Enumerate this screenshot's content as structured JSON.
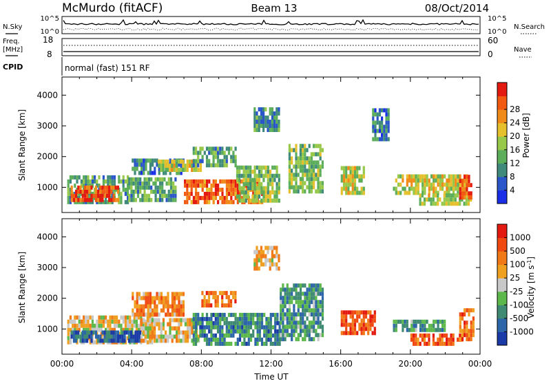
{
  "header": {
    "title": "McMurdo (fitACF)",
    "beam": "Beam 13",
    "date": "08/Oct/2014"
  },
  "noise_panel": {
    "left_label": "N.Sky",
    "right_label": "N.Search",
    "tick_top": "10^5",
    "tick_bottom": "10^0"
  },
  "freq_panel": {
    "left_label_1": "Freq.",
    "left_label_2": "[MHz]",
    "left_tick_top": "18",
    "left_tick_bottom": "8",
    "right_label": "Nave",
    "right_tick_top": "60",
    "right_tick_bottom": "0"
  },
  "cpid_panel": {
    "label": "CPID",
    "mode_text": "normal (fast) 151 RF"
  },
  "chart_data": [
    {
      "type": "heatmap",
      "name": "power",
      "ylabel": "Slant Range [km]",
      "x_ticks": [
        "00:00",
        "04:00",
        "08:00",
        "12:00",
        "16:00",
        "20:00",
        "00:00"
      ],
      "y_ticks": [
        1000,
        2000,
        3000,
        4000
      ],
      "ylim": [
        180,
        4590
      ],
      "colorbar": {
        "label": "Power [dB]",
        "tick_labels": [
          "4",
          "8",
          "12",
          "16",
          "20",
          "24",
          "28"
        ],
        "colors": [
          "#1a2ee8",
          "#2b56c9",
          "#3f8a7a",
          "#5cae5a",
          "#97c84a",
          "#e6c02c",
          "#f08a18",
          "#f25a12",
          "#e41a10"
        ]
      },
      "regions": [
        {
          "t0": 0.3,
          "t1": 3.8,
          "r0": 450,
          "r1": 1350,
          "level": 0.35
        },
        {
          "t0": 0.5,
          "t1": 3.2,
          "r0": 520,
          "r1": 950,
          "level": 0.85
        },
        {
          "t0": 3.8,
          "t1": 6.5,
          "r0": 520,
          "r1": 1200,
          "level": 0.35
        },
        {
          "t0": 4.0,
          "t1": 7.0,
          "r0": 1400,
          "r1": 1900,
          "level": 0.25
        },
        {
          "t0": 5.5,
          "t1": 8.0,
          "r0": 1500,
          "r1": 1800,
          "level": 0.55
        },
        {
          "t0": 7.0,
          "t1": 11.5,
          "r0": 450,
          "r1": 1250,
          "level": 0.8
        },
        {
          "t0": 7.5,
          "t1": 10.0,
          "r0": 1650,
          "r1": 2250,
          "level": 0.35
        },
        {
          "t0": 10.0,
          "t1": 12.5,
          "r0": 500,
          "r1": 1600,
          "level": 0.45
        },
        {
          "t0": 11.0,
          "t1": 12.5,
          "r0": 2800,
          "r1": 3600,
          "level": 0.3
        },
        {
          "t0": 13.0,
          "t1": 15.0,
          "r0": 800,
          "r1": 2400,
          "level": 0.45
        },
        {
          "t0": 16.0,
          "t1": 17.3,
          "r0": 750,
          "r1": 1600,
          "level": 0.55
        },
        {
          "t0": 17.8,
          "t1": 18.8,
          "r0": 2500,
          "r1": 3500,
          "level": 0.25
        },
        {
          "t0": 19.0,
          "t1": 23.2,
          "r0": 750,
          "r1": 1400,
          "level": 0.55
        },
        {
          "t0": 20.5,
          "t1": 23.5,
          "r0": 400,
          "r1": 750,
          "level": 0.5
        },
        {
          "t0": 22.8,
          "t1": 23.5,
          "r0": 600,
          "r1": 1300,
          "level": 0.9
        }
      ]
    },
    {
      "type": "heatmap",
      "name": "velocity",
      "ylabel": "Slant Range [km]",
      "xlabel": "Time UT",
      "x_ticks": [
        "00:00",
        "04:00",
        "08:00",
        "12:00",
        "16:00",
        "20:00",
        "00:00"
      ],
      "y_ticks": [
        1000,
        2000,
        3000,
        4000
      ],
      "ylim": [
        180,
        4590
      ],
      "colorbar": {
        "label": "Velocity [m s^-1]",
        "label_main": "Velocity [m s",
        "label_sup": "-1",
        "label_end": "]",
        "tick_labels": [
          "1000",
          "500",
          "100",
          "25",
          "-25",
          "-100",
          "-500",
          "-1000"
        ],
        "colors": [
          "#1a3aa8",
          "#2d66a8",
          "#3f8a72",
          "#5cb84a",
          "#c8c8c8",
          "#f0a020",
          "#f07a18",
          "#f04a12",
          "#e41a10"
        ]
      },
      "regions": [
        {
          "t0": 0.3,
          "t1": 5.2,
          "r0": 500,
          "r1": 1400,
          "level": 0.55
        },
        {
          "t0": 0.5,
          "t1": 4.5,
          "r0": 550,
          "r1": 900,
          "level": 0.15
        },
        {
          "t0": 4.5,
          "t1": 7.8,
          "r0": 550,
          "r1": 1300,
          "level": 0.55
        },
        {
          "t0": 4.0,
          "t1": 7.0,
          "r0": 1400,
          "r1": 2200,
          "level": 0.7
        },
        {
          "t0": 7.5,
          "t1": 12.5,
          "r0": 450,
          "r1": 1400,
          "level": 0.25
        },
        {
          "t0": 8.0,
          "t1": 10.0,
          "r0": 1700,
          "r1": 2200,
          "level": 0.75
        },
        {
          "t0": 11.0,
          "t1": 12.5,
          "r0": 2900,
          "r1": 3600,
          "level": 0.6
        },
        {
          "t0": 12.5,
          "t1": 15.0,
          "r0": 600,
          "r1": 2400,
          "level": 0.3
        },
        {
          "t0": 16.0,
          "t1": 18.0,
          "r0": 800,
          "r1": 1550,
          "level": 0.85
        },
        {
          "t0": 19.0,
          "t1": 22.0,
          "r0": 900,
          "r1": 1300,
          "level": 0.3
        },
        {
          "t0": 20.0,
          "t1": 23.0,
          "r0": 450,
          "r1": 850,
          "level": 0.8
        },
        {
          "t0": 22.8,
          "t1": 23.6,
          "r0": 600,
          "r1": 1600,
          "level": 0.75
        }
      ]
    }
  ]
}
